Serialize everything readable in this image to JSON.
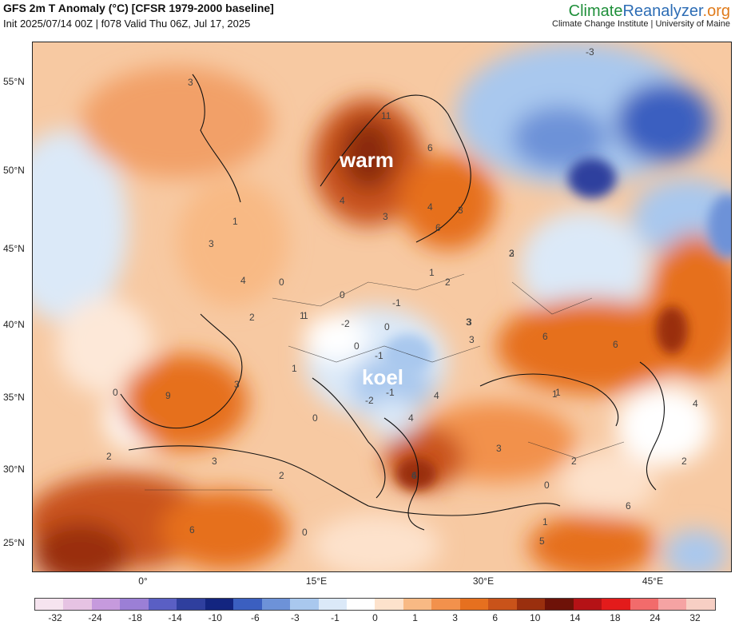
{
  "header": {
    "title": "GFS 2m T Anomaly (°C) [CFSR 1979-2000 baseline]",
    "subtitle": "Init 2025/07/14 00Z | f078 Valid Thu 06Z, Jul 17, 2025"
  },
  "brand": {
    "part1": "Climate",
    "part2": "Reanalyzer",
    "part3": ".org",
    "subline": "Climate Change Institute | University of Maine"
  },
  "axes": {
    "lat_labels": [
      "55°N",
      "50°N",
      "45°N",
      "40°N",
      "35°N",
      "30°N",
      "25°N"
    ],
    "lon_labels": [
      "0°",
      "15°E",
      "30°E",
      "45°E"
    ]
  },
  "overlay_labels": {
    "warm": "warm",
    "cool": "koel"
  },
  "contour_labels": [
    "11",
    "6",
    "4",
    "3",
    "3",
    "4",
    "6",
    "3",
    "2",
    "1",
    "1",
    "2",
    "3",
    "4",
    "0",
    "0",
    "1",
    "-1",
    "-2",
    "0",
    "0",
    "-1",
    "1",
    "1",
    "2",
    "3",
    "6",
    "6",
    "3",
    "4",
    "4",
    "9",
    "3",
    "0",
    "0",
    "-2",
    "-1",
    "1",
    "4",
    "4",
    "3",
    "2",
    "0",
    "2",
    "3",
    "2",
    "6",
    "1",
    "0",
    "6",
    "5",
    "6",
    "2",
    "-3",
    "3",
    "1",
    "3"
  ],
  "colorbar": {
    "labels": [
      "-32",
      "-24",
      "-18",
      "-14",
      "-10",
      "-6",
      "-3",
      "-1",
      "0",
      "1",
      "3",
      "6",
      "10",
      "14",
      "18",
      "24",
      "32"
    ],
    "colors": [
      "#f6e4ef",
      "#e6c3e3",
      "#c69add",
      "#9b7fd6",
      "#5a5fc4",
      "#2f3f9e",
      "#132580",
      "#3b5fc0",
      "#6d92d8",
      "#a9c8ee",
      "#dbe9f8",
      "#ffffff",
      "#fde2cc",
      "#f8b984",
      "#f2914c",
      "#e6701f",
      "#c9531a",
      "#9a2f0e",
      "#6e1208",
      "#b51216",
      "#e31b1b",
      "#f26b6b",
      "#f5a3a3",
      "#f7cfc4"
    ]
  }
}
